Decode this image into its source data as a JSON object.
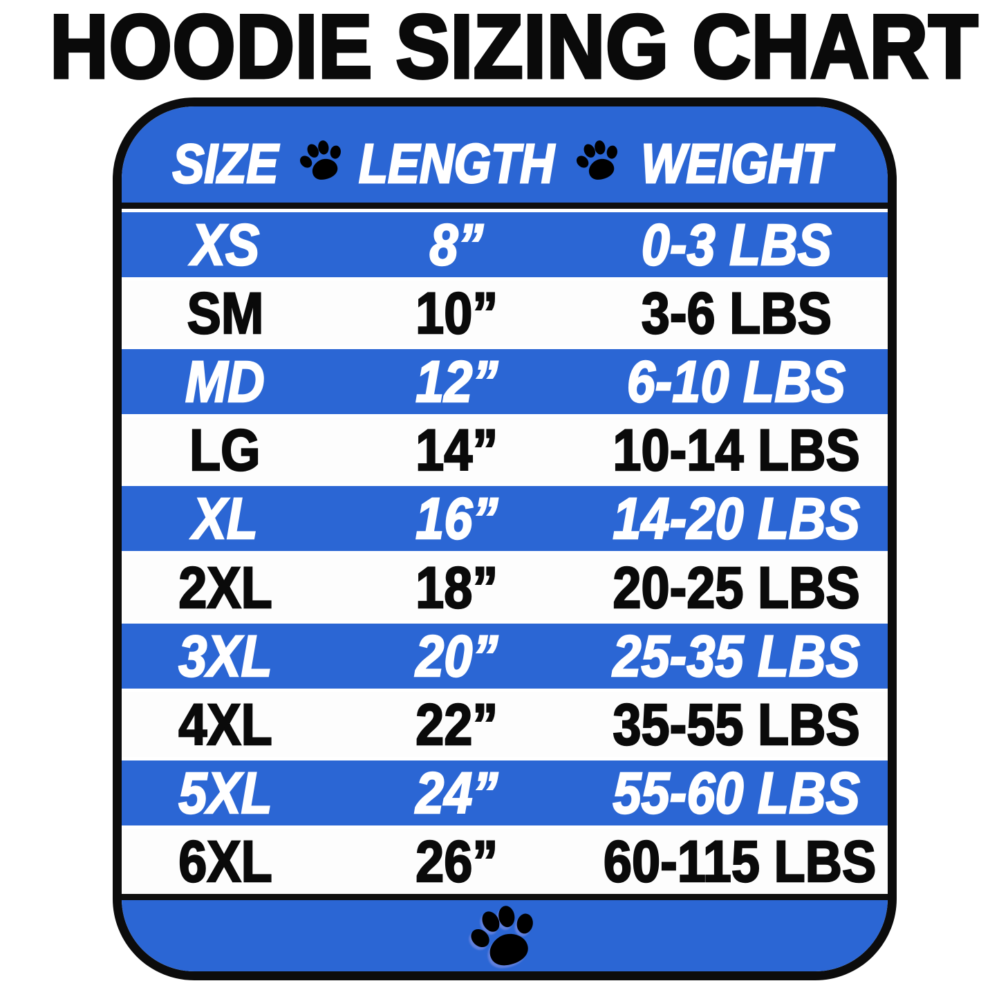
{
  "page": {
    "title": "HOODIE SIZING CHART"
  },
  "colors": {
    "accent_blue": "#2b66d4",
    "border_black": "#0c0c0c",
    "text_white": "#ffffff",
    "text_black": "#0a0a0a"
  },
  "header": {
    "columns": [
      "SIZE",
      "LENGTH",
      "WEIGHT"
    ]
  },
  "icons": {
    "header_separator": "paw-icon",
    "footer": "paw-icon"
  },
  "rows": [
    {
      "size": "XS",
      "length": "8”",
      "weight": "0-3 LBS",
      "style": "blue"
    },
    {
      "size": "SM",
      "length": "10”",
      "weight": "3-6 LBS",
      "style": "white"
    },
    {
      "size": "MD",
      "length": "12”",
      "weight": "6-10 LBS",
      "style": "blue"
    },
    {
      "size": "LG",
      "length": "14”",
      "weight": "10-14 LBS",
      "style": "white"
    },
    {
      "size": "XL",
      "length": "16”",
      "weight": "14-20 LBS",
      "style": "blue"
    },
    {
      "size": "2XL",
      "length": "18”",
      "weight": "20-25 LBS",
      "style": "white"
    },
    {
      "size": "3XL",
      "length": "20”",
      "weight": "25-35 LBS",
      "style": "blue"
    },
    {
      "size": "4XL",
      "length": "22”",
      "weight": "35-55 LBS",
      "style": "white"
    },
    {
      "size": "5XL",
      "length": "24”",
      "weight": "55-60 LBS",
      "style": "blue"
    },
    {
      "size": "6XL",
      "length": "26”",
      "weight": "60-115 LBS",
      "style": "white"
    }
  ],
  "chart_data": {
    "type": "table",
    "title": "HOODIE SIZING CHART",
    "columns": [
      "SIZE",
      "LENGTH",
      "WEIGHT"
    ],
    "rows": [
      [
        "XS",
        "8”",
        "0-3 LBS"
      ],
      [
        "SM",
        "10”",
        "3-6 LBS"
      ],
      [
        "MD",
        "12”",
        "6-10 LBS"
      ],
      [
        "LG",
        "14”",
        "10-14 LBS"
      ],
      [
        "XL",
        "16”",
        "14-20 LBS"
      ],
      [
        "2XL",
        "18”",
        "20-25 LBS"
      ],
      [
        "3XL",
        "20”",
        "25-35 LBS"
      ],
      [
        "4XL",
        "22”",
        "35-55 LBS"
      ],
      [
        "5XL",
        "24”",
        "55-60 LBS"
      ],
      [
        "6XL",
        "26”",
        "60-115 LBS"
      ]
    ],
    "layout": {
      "row_stripes": [
        "blue",
        "white"
      ],
      "header_background": "#2b66d4",
      "grid": false
    }
  }
}
